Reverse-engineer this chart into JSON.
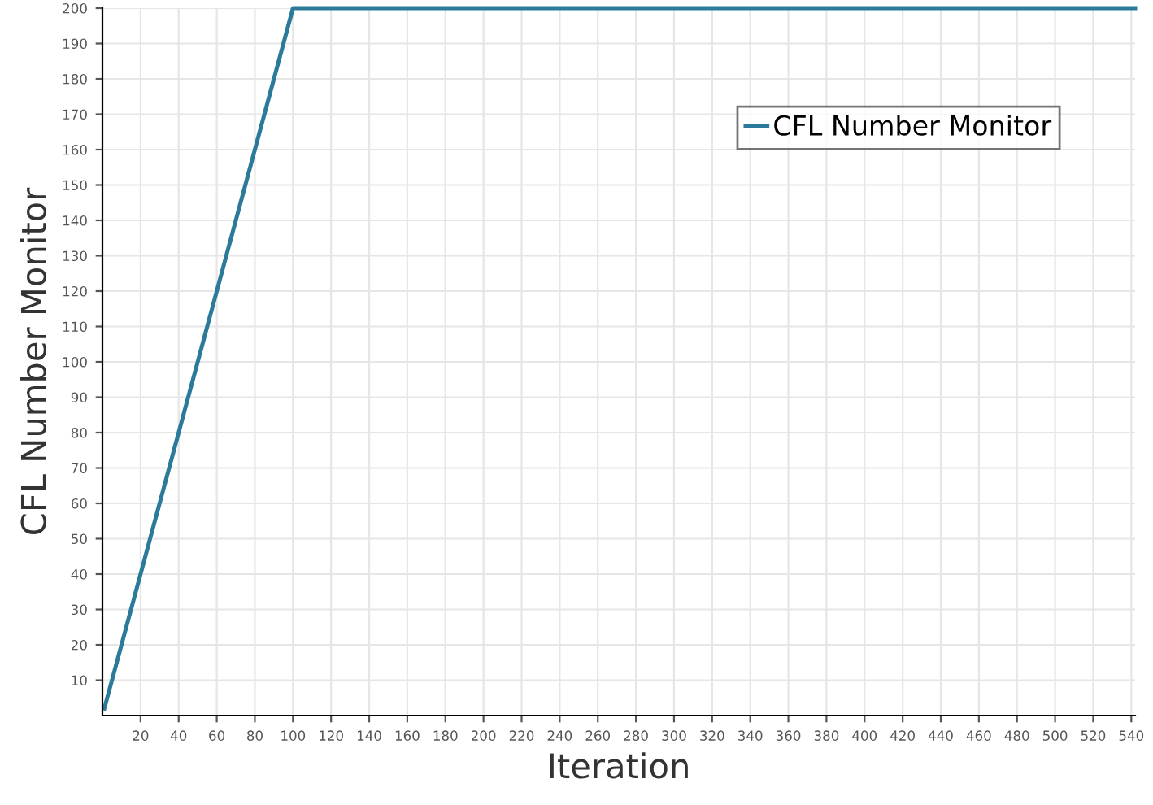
{
  "chart_data": {
    "type": "line",
    "xlabel": "Iteration",
    "ylabel": "CFL Number Monitor",
    "series": [
      {
        "name": "CFL Number Monitor",
        "color": "#2b7a99",
        "x": [
          1,
          100,
          542
        ],
        "values": [
          2,
          200,
          200
        ]
      }
    ],
    "xlim": [
      0,
      542
    ],
    "xticks": [
      20,
      40,
      60,
      80,
      100,
      120,
      140,
      160,
      180,
      200,
      220,
      240,
      260,
      280,
      300,
      320,
      340,
      360,
      380,
      400,
      420,
      440,
      460,
      480,
      500,
      520,
      540
    ],
    "ylim": [
      0,
      200
    ],
    "yticks": [
      10,
      20,
      30,
      40,
      50,
      60,
      70,
      80,
      90,
      100,
      110,
      120,
      130,
      140,
      150,
      160,
      170,
      180,
      190,
      200
    ],
    "grid": true,
    "legend": "top right",
    "line_style": "solid",
    "marker": "none"
  }
}
